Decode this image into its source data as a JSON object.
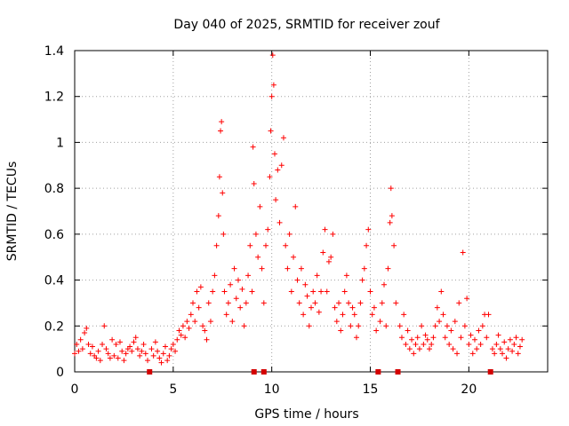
{
  "chart_data": {
    "type": "scatter",
    "title": "Day 040 of 2025, SRMTID for receiver zouf",
    "xlabel": "GPS time / hours",
    "ylabel": "SRMTID / TECUs",
    "xlim": [
      0,
      24
    ],
    "ylim": [
      0,
      1.4
    ],
    "xticks": [
      0,
      5,
      10,
      15,
      20
    ],
    "xtick_labels": [
      "0",
      "5",
      "10",
      "15",
      "20"
    ],
    "yticks": [
      0,
      0.2,
      0.4,
      0.6,
      0.8,
      1,
      1.2,
      1.4
    ],
    "ytick_labels": [
      "0",
      "0.2",
      "0.4",
      "0.6",
      "0.8",
      "1",
      "1.2",
      "1.4"
    ],
    "grid": true,
    "marker": "plus",
    "color": "#ff0000",
    "data_gap_markers_x": [
      3.8,
      9.1,
      9.6,
      15.4,
      16.4,
      21.1
    ],
    "series": [
      {
        "name": "SRMTID",
        "points": [
          [
            0.0,
            0.08
          ],
          [
            0.1,
            0.12
          ],
          [
            0.2,
            0.09
          ],
          [
            0.3,
            0.14
          ],
          [
            0.4,
            0.1
          ],
          [
            0.5,
            0.17
          ],
          [
            0.6,
            0.19
          ],
          [
            0.7,
            0.12
          ],
          [
            0.8,
            0.08
          ],
          [
            0.9,
            0.11
          ],
          [
            1.0,
            0.07
          ],
          [
            1.1,
            0.06
          ],
          [
            1.2,
            0.09
          ],
          [
            1.3,
            0.05
          ],
          [
            1.4,
            0.12
          ],
          [
            1.5,
            0.2
          ],
          [
            1.6,
            0.1
          ],
          [
            1.7,
            0.08
          ],
          [
            1.8,
            0.06
          ],
          [
            1.9,
            0.14
          ],
          [
            2.0,
            0.07
          ],
          [
            2.1,
            0.12
          ],
          [
            2.2,
            0.06
          ],
          [
            2.3,
            0.13
          ],
          [
            2.4,
            0.09
          ],
          [
            2.5,
            0.05
          ],
          [
            2.6,
            0.08
          ],
          [
            2.7,
            0.1
          ],
          [
            2.8,
            0.11
          ],
          [
            2.9,
            0.09
          ],
          [
            3.0,
            0.13
          ],
          [
            3.1,
            0.15
          ],
          [
            3.2,
            0.1
          ],
          [
            3.3,
            0.07
          ],
          [
            3.4,
            0.09
          ],
          [
            3.5,
            0.12
          ],
          [
            3.6,
            0.08
          ],
          [
            3.7,
            0.05
          ],
          [
            3.9,
            0.1
          ],
          [
            4.0,
            0.07
          ],
          [
            4.1,
            0.13
          ],
          [
            4.2,
            0.09
          ],
          [
            4.3,
            0.06
          ],
          [
            4.4,
            0.04
          ],
          [
            4.5,
            0.08
          ],
          [
            4.6,
            0.11
          ],
          [
            4.7,
            0.05
          ],
          [
            4.8,
            0.07
          ],
          [
            4.9,
            0.1
          ],
          [
            5.0,
            0.12
          ],
          [
            5.1,
            0.09
          ],
          [
            5.2,
            0.14
          ],
          [
            5.3,
            0.18
          ],
          [
            5.4,
            0.16
          ],
          [
            5.5,
            0.2
          ],
          [
            5.6,
            0.15
          ],
          [
            5.7,
            0.22
          ],
          [
            5.8,
            0.19
          ],
          [
            5.9,
            0.25
          ],
          [
            6.0,
            0.3
          ],
          [
            6.1,
            0.22
          ],
          [
            6.2,
            0.35
          ],
          [
            6.3,
            0.28
          ],
          [
            6.4,
            0.37
          ],
          [
            6.5,
            0.2
          ],
          [
            6.6,
            0.18
          ],
          [
            6.7,
            0.14
          ],
          [
            6.8,
            0.3
          ],
          [
            6.9,
            0.22
          ],
          [
            7.0,
            0.35
          ],
          [
            7.1,
            0.42
          ],
          [
            7.2,
            0.55
          ],
          [
            7.3,
            0.68
          ],
          [
            7.35,
            0.85
          ],
          [
            7.4,
            1.05
          ],
          [
            7.45,
            1.09
          ],
          [
            7.5,
            0.78
          ],
          [
            7.55,
            0.6
          ],
          [
            7.6,
            0.35
          ],
          [
            7.7,
            0.25
          ],
          [
            7.8,
            0.3
          ],
          [
            7.9,
            0.38
          ],
          [
            8.0,
            0.22
          ],
          [
            8.1,
            0.45
          ],
          [
            8.2,
            0.32
          ],
          [
            8.3,
            0.4
          ],
          [
            8.4,
            0.28
          ],
          [
            8.5,
            0.36
          ],
          [
            8.6,
            0.2
          ],
          [
            8.7,
            0.3
          ],
          [
            8.8,
            0.42
          ],
          [
            8.9,
            0.55
          ],
          [
            9.0,
            0.35
          ],
          [
            9.05,
            0.98
          ],
          [
            9.1,
            0.82
          ],
          [
            9.2,
            0.6
          ],
          [
            9.3,
            0.5
          ],
          [
            9.4,
            0.72
          ],
          [
            9.5,
            0.45
          ],
          [
            9.6,
            0.3
          ],
          [
            9.7,
            0.55
          ],
          [
            9.8,
            0.62
          ],
          [
            9.9,
            0.85
          ],
          [
            9.95,
            1.05
          ],
          [
            10.0,
            1.2
          ],
          [
            10.05,
            1.38
          ],
          [
            10.1,
            1.25
          ],
          [
            10.15,
            0.95
          ],
          [
            10.2,
            0.75
          ],
          [
            10.3,
            0.88
          ],
          [
            10.4,
            0.65
          ],
          [
            10.5,
            0.9
          ],
          [
            10.6,
            1.02
          ],
          [
            10.7,
            0.55
          ],
          [
            10.8,
            0.45
          ],
          [
            10.9,
            0.6
          ],
          [
            11.0,
            0.35
          ],
          [
            11.1,
            0.5
          ],
          [
            11.2,
            0.72
          ],
          [
            11.3,
            0.4
          ],
          [
            11.4,
            0.3
          ],
          [
            11.5,
            0.45
          ],
          [
            11.6,
            0.25
          ],
          [
            11.7,
            0.38
          ],
          [
            11.8,
            0.33
          ],
          [
            11.9,
            0.2
          ],
          [
            12.0,
            0.28
          ],
          [
            12.1,
            0.35
          ],
          [
            12.2,
            0.3
          ],
          [
            12.3,
            0.42
          ],
          [
            12.4,
            0.26
          ],
          [
            12.5,
            0.35
          ],
          [
            12.6,
            0.52
          ],
          [
            12.7,
            0.62
          ],
          [
            12.8,
            0.35
          ],
          [
            12.9,
            0.48
          ],
          [
            13.0,
            0.5
          ],
          [
            13.1,
            0.6
          ],
          [
            13.2,
            0.28
          ],
          [
            13.3,
            0.22
          ],
          [
            13.4,
            0.3
          ],
          [
            13.5,
            0.18
          ],
          [
            13.6,
            0.25
          ],
          [
            13.7,
            0.35
          ],
          [
            13.8,
            0.42
          ],
          [
            13.9,
            0.3
          ],
          [
            14.0,
            0.2
          ],
          [
            14.1,
            0.28
          ],
          [
            14.2,
            0.25
          ],
          [
            14.3,
            0.15
          ],
          [
            14.4,
            0.2
          ],
          [
            14.5,
            0.3
          ],
          [
            14.6,
            0.4
          ],
          [
            14.7,
            0.45
          ],
          [
            14.8,
            0.55
          ],
          [
            14.9,
            0.62
          ],
          [
            15.0,
            0.35
          ],
          [
            15.1,
            0.25
          ],
          [
            15.2,
            0.28
          ],
          [
            15.3,
            0.18
          ],
          [
            15.5,
            0.22
          ],
          [
            15.6,
            0.3
          ],
          [
            15.7,
            0.38
          ],
          [
            15.8,
            0.2
          ],
          [
            15.9,
            0.45
          ],
          [
            16.0,
            0.65
          ],
          [
            16.05,
            0.8
          ],
          [
            16.1,
            0.68
          ],
          [
            16.2,
            0.55
          ],
          [
            16.3,
            0.3
          ],
          [
            16.5,
            0.2
          ],
          [
            16.6,
            0.15
          ],
          [
            16.7,
            0.25
          ],
          [
            16.8,
            0.12
          ],
          [
            16.9,
            0.18
          ],
          [
            17.0,
            0.1
          ],
          [
            17.1,
            0.14
          ],
          [
            17.2,
            0.08
          ],
          [
            17.3,
            0.12
          ],
          [
            17.4,
            0.15
          ],
          [
            17.5,
            0.1
          ],
          [
            17.6,
            0.2
          ],
          [
            17.7,
            0.12
          ],
          [
            17.8,
            0.16
          ],
          [
            17.9,
            0.14
          ],
          [
            18.0,
            0.1
          ],
          [
            18.1,
            0.12
          ],
          [
            18.2,
            0.15
          ],
          [
            18.3,
            0.2
          ],
          [
            18.4,
            0.28
          ],
          [
            18.5,
            0.22
          ],
          [
            18.6,
            0.35
          ],
          [
            18.7,
            0.25
          ],
          [
            18.8,
            0.15
          ],
          [
            18.9,
            0.2
          ],
          [
            19.0,
            0.12
          ],
          [
            19.1,
            0.18
          ],
          [
            19.2,
            0.1
          ],
          [
            19.3,
            0.22
          ],
          [
            19.4,
            0.08
          ],
          [
            19.5,
            0.3
          ],
          [
            19.6,
            0.15
          ],
          [
            19.7,
            0.52
          ],
          [
            19.8,
            0.2
          ],
          [
            19.9,
            0.32
          ],
          [
            20.0,
            0.12
          ],
          [
            20.1,
            0.16
          ],
          [
            20.2,
            0.08
          ],
          [
            20.3,
            0.14
          ],
          [
            20.4,
            0.1
          ],
          [
            20.5,
            0.18
          ],
          [
            20.6,
            0.12
          ],
          [
            20.7,
            0.2
          ],
          [
            20.8,
            0.25
          ],
          [
            20.9,
            0.15
          ],
          [
            21.0,
            0.25
          ],
          [
            21.2,
            0.1
          ],
          [
            21.3,
            0.08
          ],
          [
            21.4,
            0.12
          ],
          [
            21.5,
            0.16
          ],
          [
            21.6,
            0.1
          ],
          [
            21.7,
            0.08
          ],
          [
            21.8,
            0.13
          ],
          [
            21.9,
            0.06
          ],
          [
            22.0,
            0.1
          ],
          [
            22.1,
            0.14
          ],
          [
            22.2,
            0.09
          ],
          [
            22.3,
            0.12
          ],
          [
            22.4,
            0.15
          ],
          [
            22.5,
            0.08
          ],
          [
            22.6,
            0.11
          ],
          [
            22.7,
            0.14
          ]
        ]
      }
    ]
  }
}
